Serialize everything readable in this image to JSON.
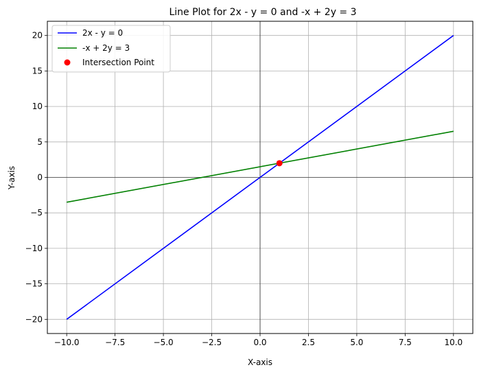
{
  "chart_data": {
    "type": "line",
    "title": "Line Plot for 2x - y = 0 and -x + 2y = 3",
    "xlabel": "X-axis",
    "ylabel": "Y-axis",
    "xlim": [
      -11,
      11
    ],
    "ylim": [
      -22,
      22
    ],
    "xticks": [
      -10,
      -7.5,
      -5,
      -2.5,
      0,
      2.5,
      5,
      7.5,
      10
    ],
    "xtick_labels": [
      "−10.0",
      "−7.5",
      "−5.0",
      "−2.5",
      "0.0",
      "2.5",
      "5.0",
      "7.5",
      "10.0"
    ],
    "yticks": [
      -20,
      -15,
      -10,
      -5,
      0,
      5,
      10,
      15,
      20
    ],
    "ytick_labels": [
      "−20",
      "−15",
      "−10",
      "−5",
      "0",
      "5",
      "10",
      "15",
      "20"
    ],
    "grid": true,
    "legend_position": "top-left",
    "series": [
      {
        "name": "2x - y = 0",
        "kind": "line",
        "color": "#0000ff",
        "x": [
          -10,
          10
        ],
        "y": [
          -20,
          20
        ]
      },
      {
        "name": "-x + 2y = 3",
        "kind": "line",
        "color": "#008000",
        "x": [
          -10,
          10
        ],
        "y": [
          -3.5,
          6.5
        ]
      },
      {
        "name": "Intersection Point",
        "kind": "marker",
        "color": "#ff0000",
        "x": [
          1
        ],
        "y": [
          2
        ]
      }
    ],
    "reference_lines": {
      "x": 0,
      "y": 0,
      "color": "#000000"
    }
  }
}
